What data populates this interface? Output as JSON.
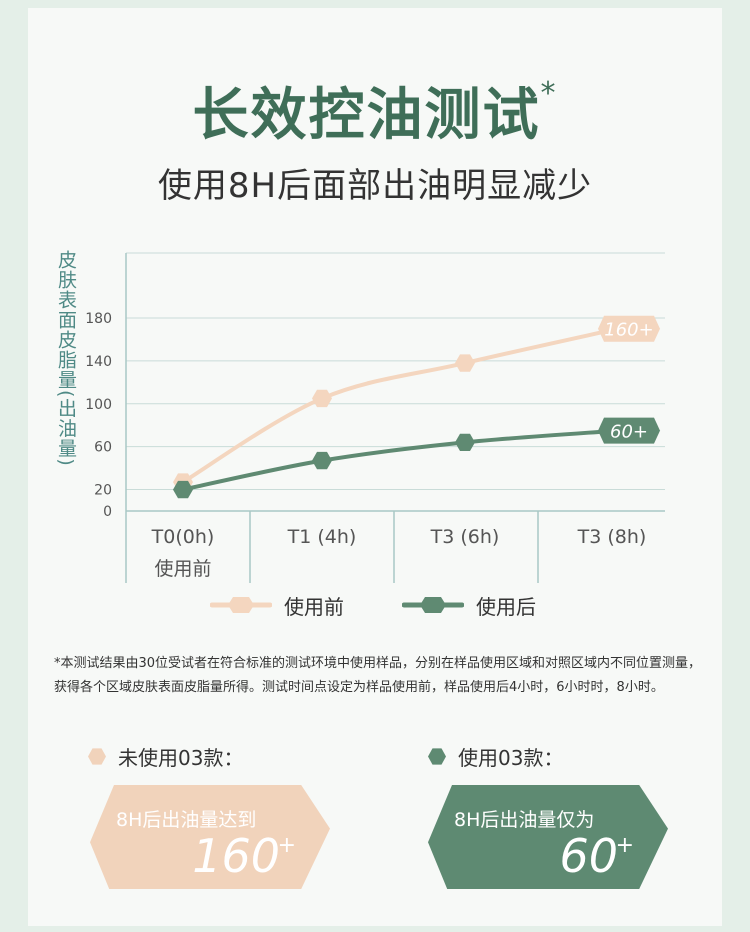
{
  "header": {
    "title": "长效控油测试",
    "title_mark": "*",
    "subtitle": "使用8H后面部出油明显减少"
  },
  "chart_data": {
    "type": "line",
    "ylabel": "皮肤表面皮脂量(出油量)",
    "yticks": [
      0,
      20,
      60,
      100,
      140,
      180
    ],
    "ylim": [
      0,
      200
    ],
    "categories": [
      "T0(0h)",
      "T1 (4h)",
      "T3 (6h)",
      "T3 (8h)"
    ],
    "category_sublabels": [
      "使用前",
      "",
      "",
      ""
    ],
    "grid": true,
    "legend_position": "bottom",
    "series": [
      {
        "name": "使用前",
        "values": [
          27,
          105,
          138,
          170
        ],
        "end_label": "160+",
        "color": "#f4d6bf"
      },
      {
        "name": "使用后",
        "values": [
          20,
          47,
          64,
          75
        ],
        "end_label": "60+",
        "color": "#5f8a72"
      }
    ]
  },
  "footnote": "*本测试结果由30位受试者在符合标准的测试环境中使用样品，分别在样品使用区域和对照区域内不同位置测量，获得各个区域皮肤表面皮脂量所得。测试时间点设定为样品使用前，样品使用后4小时，6小时时，8小时。",
  "summary": {
    "left": {
      "label": "未使用03款：",
      "line": "8H后出油量达到",
      "value": "160",
      "plus": "+",
      "color": "#f1d3bb"
    },
    "right": {
      "label": "使用03款：",
      "line": "8H后出油量仅为",
      "value": "60",
      "plus": "+",
      "color": "#5e8a72"
    }
  }
}
